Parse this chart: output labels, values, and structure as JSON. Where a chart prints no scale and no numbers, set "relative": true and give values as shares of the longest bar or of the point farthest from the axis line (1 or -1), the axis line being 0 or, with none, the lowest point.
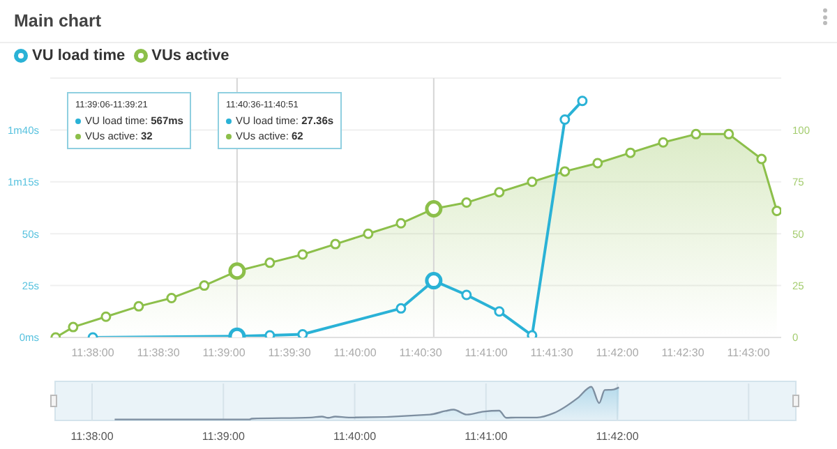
{
  "chart_data": [
    {
      "type": "line",
      "title": "Main chart",
      "legend": "top left",
      "grid": "y",
      "marker": "circle",
      "xlim": [
        11.627917,
        11.720833
      ],
      "xticks": [
        {
          "value": 11.633333,
          "label": "11:38:00"
        },
        {
          "value": 11.641667,
          "label": "11:38:30"
        },
        {
          "value": 11.65,
          "label": "11:39:00"
        },
        {
          "value": 11.658333,
          "label": "11:39:30"
        },
        {
          "value": 11.666667,
          "label": "11:40:00"
        },
        {
          "value": 11.675,
          "label": "11:40:30"
        },
        {
          "value": 11.683333,
          "label": "11:41:00"
        },
        {
          "value": 11.691667,
          "label": "11:41:30"
        },
        {
          "value": 11.7,
          "label": "11:42:00"
        },
        {
          "value": 11.708333,
          "label": "11:42:30"
        },
        {
          "value": 11.716667,
          "label": "11:43:00"
        }
      ],
      "ylim": [
        0,
        125
      ],
      "yticks": [
        {
          "value": 0,
          "label": "0ms"
        },
        {
          "value": 25,
          "label": "25s"
        },
        {
          "value": 50,
          "label": "50s"
        },
        {
          "value": 75,
          "label": "1m15s"
        },
        {
          "value": 100,
          "label": "1m40s"
        }
      ],
      "y2lim": [
        0,
        125
      ],
      "y2ticks": [
        0,
        25,
        50,
        75,
        100
      ],
      "ref_lines": [
        {
          "axis": "x",
          "value": 11.651667,
          "color": "#d6d6d6"
        },
        {
          "axis": "x",
          "value": 11.676667,
          "color": "#d6d6d6"
        }
      ],
      "annotations": [
        "11:39:06-11:39:21",
        "VU load time: 567ms",
        "VUs active: 32",
        "11:40:36-11:40:51",
        "VU load time: 27.36s",
        "VUs active: 62"
      ],
      "series": [
        {
          "name": "VU load time",
          "color": "#2ab2d6",
          "x": [
            11.633333,
            11.651667,
            11.655833,
            11.66,
            11.664167,
            11.668333,
            11.6725,
            11.676667,
            11.680833,
            11.685,
            11.689167,
            11.693333,
            11.695556
          ],
          "values": [
            0,
            0.567,
            1,
            1.5,
            null,
            null,
            14,
            27.36,
            20.5,
            12.5,
            1,
            105,
            114
          ]
        },
        {
          "name": "VUs active",
          "type": "area",
          "axis": "y2",
          "color": "#8cbf4a",
          "x": [
            11.628611,
            11.630833,
            11.635,
            11.639167,
            11.643333,
            11.6475,
            11.651667,
            11.655833,
            11.66,
            11.664167,
            11.668333,
            11.6725,
            11.676667,
            11.680833,
            11.685,
            11.689167,
            11.693333,
            11.6975,
            11.701667,
            11.705833,
            11.71,
            11.714167,
            11.718333,
            11.720278
          ],
          "values": [
            0,
            5,
            10,
            15,
            19,
            25,
            32,
            36,
            40,
            45,
            50,
            55,
            62,
            65,
            70,
            75,
            80,
            84,
            89,
            94,
            98,
            98,
            86,
            61
          ]
        }
      ]
    },
    {
      "type": "area",
      "relative": true,
      "grid": "x",
      "tick_labels": "x",
      "xlim": [
        11.62855,
        11.72275
      ],
      "xticks": [
        {
          "value": 11.633333,
          "label": "11:38:00"
        },
        {
          "value": 11.65,
          "label": "11:39:00"
        },
        {
          "value": 11.666667,
          "label": "11:40:00"
        },
        {
          "value": 11.683333,
          "label": "11:41:00"
        },
        {
          "value": 11.7,
          "label": "11:42:00"
        },
        {
          "value": 11.716667,
          "label": null
        }
      ],
      "series": [
        {
          "color": "#7d8ea0",
          "x": [
            11.6362,
            11.6533,
            11.6536,
            11.6611,
            11.6625,
            11.6633,
            11.6642,
            11.6659,
            11.6762,
            11.6782,
            11.6792,
            11.6809,
            11.683,
            11.685,
            11.6859,
            11.6871,
            11.6898,
            11.6919,
            11.695,
            11.6967,
            11.6977,
            11.6984,
            11.6994,
            11.7002
          ],
          "values": [
            0,
            0,
            0.025,
            0.06,
            0.09,
            0.05,
            0.09,
            0.06,
            0.15,
            0.26,
            0.3,
            0.15,
            0.24,
            0.27,
            0.05,
            0.06,
            0.06,
            0.19,
            0.66,
            1,
            0.5,
            0.9,
            0.91,
            0.98
          ]
        }
      ]
    }
  ]
}
